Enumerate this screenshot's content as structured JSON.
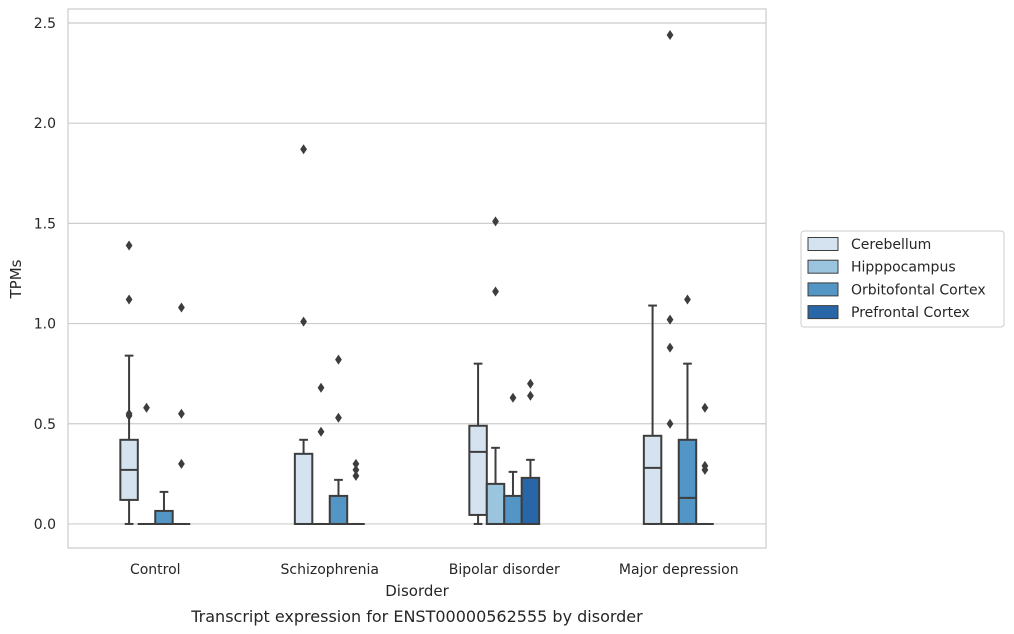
{
  "chart_data": {
    "type": "box",
    "xlabel": "Disorder",
    "ylabel": "TPMs",
    "caption": "Transcript expression for ENST00000562555 by disorder",
    "ylim": [
      -0.12,
      2.57
    ],
    "yticks": [
      "0.0",
      "0.5",
      "1.0",
      "1.5",
      "2.0",
      "2.5"
    ],
    "grid": true,
    "legend_position": "right",
    "categories": [
      "Control",
      "Schizophrenia",
      "Bipolar disorder",
      "Major depression"
    ],
    "series": [
      {
        "name": "Cerebellum",
        "color": "#d5e3f1"
      },
      {
        "name": "Hipppocampus",
        "color": "#9bc4de"
      },
      {
        "name": "Orbitofontal Cortex",
        "color": "#5396c6"
      },
      {
        "name": "Prefrontal Cortex",
        "color": "#2866a8"
      }
    ],
    "boxes": [
      {
        "category": 0,
        "series": 0,
        "whislo": 0.0,
        "q1": 0.12,
        "med": 0.27,
        "q3": 0.42,
        "whishi": 0.84,
        "fliers": [
          1.12,
          1.39,
          0.55,
          0.54
        ]
      },
      {
        "category": 0,
        "series": 1,
        "whislo": 0.0,
        "q1": 0.0,
        "med": 0.0,
        "q3": 0.0,
        "whishi": 0.0,
        "fliers": [
          0.58
        ]
      },
      {
        "category": 0,
        "series": 2,
        "whislo": 0.0,
        "q1": 0.0,
        "med": 0.0,
        "q3": 0.065,
        "whishi": 0.16,
        "fliers": []
      },
      {
        "category": 0,
        "series": 3,
        "whislo": 0.0,
        "q1": 0.0,
        "med": 0.0,
        "q3": 0.0,
        "whishi": 0.0,
        "fliers": [
          1.08,
          0.55,
          0.3
        ]
      },
      {
        "category": 1,
        "series": 0,
        "whislo": 0.0,
        "q1": 0.0,
        "med": 0.0,
        "q3": 0.35,
        "whishi": 0.42,
        "fliers": [
          1.87,
          1.01
        ]
      },
      {
        "category": 1,
        "series": 1,
        "whislo": 0.0,
        "q1": 0.0,
        "med": 0.0,
        "q3": 0.0,
        "whishi": 0.0,
        "fliers": [
          0.68,
          0.46
        ]
      },
      {
        "category": 1,
        "series": 2,
        "whislo": 0.0,
        "q1": 0.0,
        "med": 0.0,
        "q3": 0.14,
        "whishi": 0.22,
        "fliers": [
          0.82,
          0.53
        ]
      },
      {
        "category": 1,
        "series": 3,
        "whislo": 0.0,
        "q1": 0.0,
        "med": 0.0,
        "q3": 0.0,
        "whishi": 0.0,
        "fliers": [
          0.3,
          0.27,
          0.24
        ]
      },
      {
        "category": 2,
        "series": 0,
        "whislo": 0.0,
        "q1": 0.045,
        "med": 0.36,
        "q3": 0.49,
        "whishi": 0.8,
        "fliers": []
      },
      {
        "category": 2,
        "series": 1,
        "whislo": 0.0,
        "q1": 0.0,
        "med": 0.0,
        "q3": 0.2,
        "whishi": 0.38,
        "fliers": [
          1.51,
          1.16
        ]
      },
      {
        "category": 2,
        "series": 2,
        "whislo": 0.0,
        "q1": 0.0,
        "med": 0.0,
        "q3": 0.14,
        "whishi": 0.26,
        "fliers": [
          0.63
        ]
      },
      {
        "category": 2,
        "series": 3,
        "whislo": 0.0,
        "q1": 0.0,
        "med": 0.0,
        "q3": 0.23,
        "whishi": 0.32,
        "fliers": [
          0.7,
          0.64
        ]
      },
      {
        "category": 3,
        "series": 0,
        "whislo": 0.0,
        "q1": 0.0,
        "med": 0.28,
        "q3": 0.44,
        "whishi": 1.09,
        "fliers": []
      },
      {
        "category": 3,
        "series": 1,
        "whislo": 0.0,
        "q1": 0.0,
        "med": 0.0,
        "q3": 0.0,
        "whishi": 0.0,
        "fliers": [
          2.44,
          1.02,
          0.88,
          0.5
        ]
      },
      {
        "category": 3,
        "series": 2,
        "whislo": 0.0,
        "q1": 0.0,
        "med": 0.13,
        "q3": 0.42,
        "whishi": 0.8,
        "fliers": [
          1.12
        ]
      },
      {
        "category": 3,
        "series": 3,
        "whislo": 0.0,
        "q1": 0.0,
        "med": 0.0,
        "q3": 0.0,
        "whishi": 0.0,
        "fliers": [
          0.58,
          0.29,
          0.27
        ]
      }
    ]
  }
}
